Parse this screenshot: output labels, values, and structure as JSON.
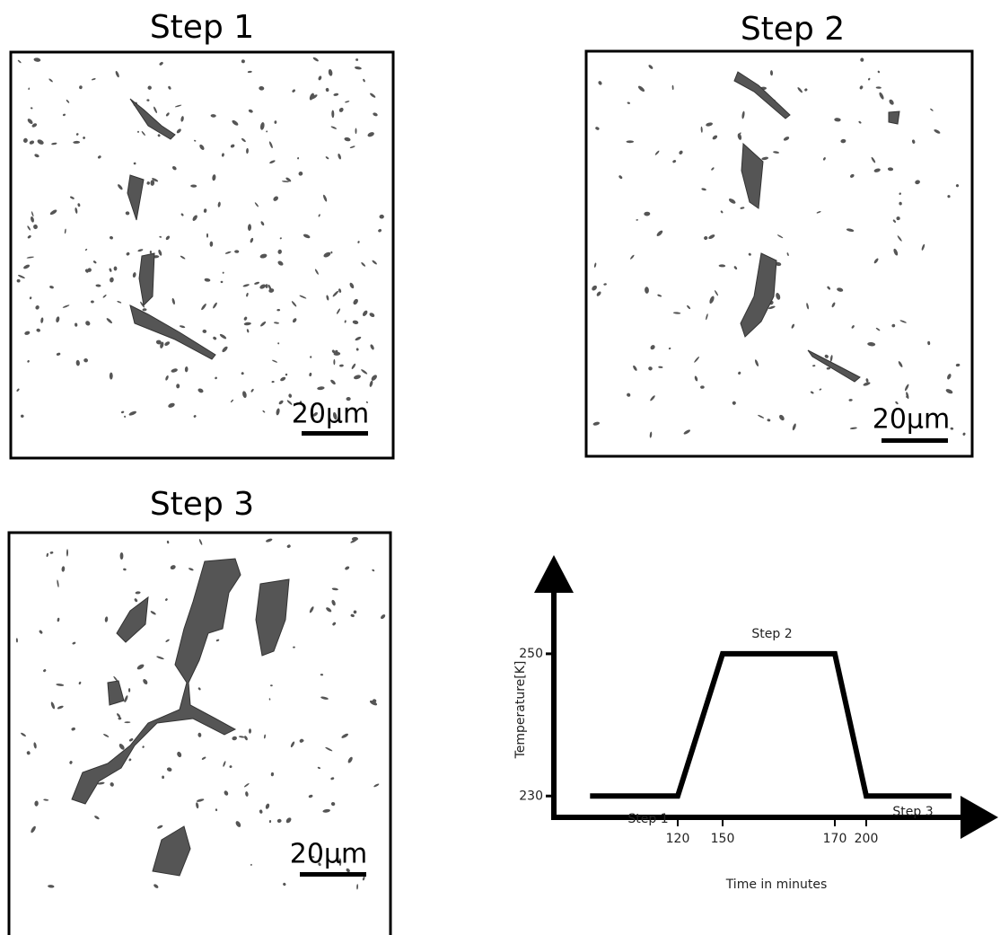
{
  "panels": [
    {
      "title": "Step 1",
      "scale_bar": "20µm"
    },
    {
      "title": "Step 2",
      "scale_bar": "20µm"
    },
    {
      "title": "Step 3",
      "scale_bar": "20µm"
    }
  ],
  "chart_data": {
    "type": "line",
    "xlabel": "Time in minutes",
    "ylabel": "Temperature[K]",
    "x": [
      35,
      120,
      150,
      170,
      200,
      276
    ],
    "values": [
      230,
      230,
      250,
      250,
      230,
      230
    ],
    "color": "#000000",
    "xlim": [
      0,
      300
    ],
    "xticks": [
      120,
      150,
      170,
      200
    ],
    "ylim": [
      227,
      263
    ],
    "yticks": [
      230,
      250
    ],
    "annotations": [
      "Step 1",
      "Step 2",
      "Step 3"
    ]
  }
}
